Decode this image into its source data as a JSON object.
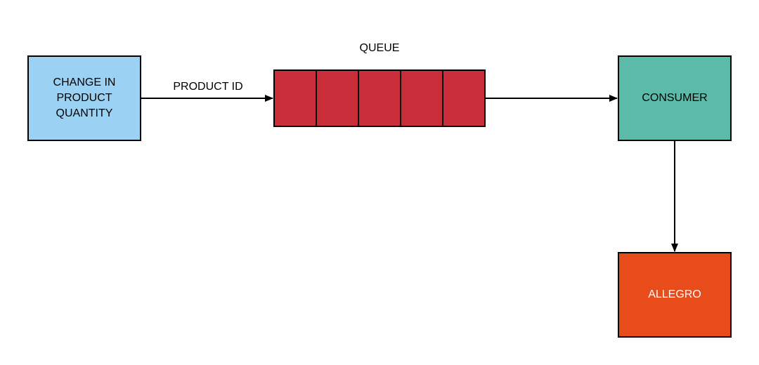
{
  "colors": {
    "source_fill": "#9bd2f3",
    "queue_fill": "#c92d39",
    "consumer_fill": "#5bbaa8",
    "allegro_fill": "#e84c1b",
    "stroke": "#000000",
    "text_dark": "#000000",
    "text_light": "#ffffff"
  },
  "queue": {
    "title": "QUEUE",
    "slot_count": 5
  },
  "nodes": {
    "source": {
      "label": "CHANGE IN\nPRODUCT\nQUANTITY"
    },
    "consumer": {
      "label": "CONSUMER"
    },
    "allegro": {
      "label": "ALLEGRO"
    }
  },
  "edges": [
    {
      "from": "source",
      "to": "queue",
      "label": "PRODUCT ID"
    },
    {
      "from": "queue",
      "to": "consumer",
      "label": ""
    },
    {
      "from": "consumer",
      "to": "allegro",
      "label": ""
    }
  ]
}
